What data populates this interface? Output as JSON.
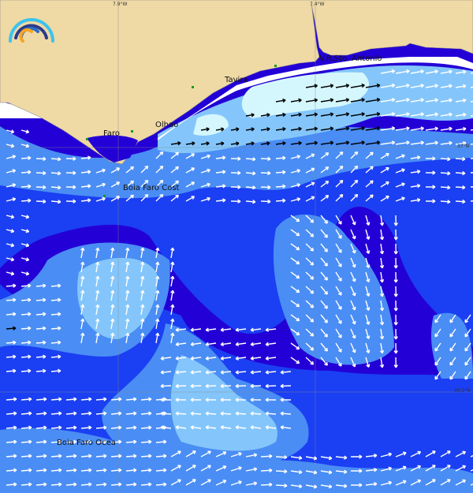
{
  "map": {
    "colors": {
      "land": "#efd9a5",
      "deep": "#2300d6",
      "mid": "#1b3ff2",
      "light": "#4a8df4",
      "lighter": "#84c6fb",
      "pale": "#d4f7fd",
      "nodata": "#ffffff"
    },
    "grid": {
      "lon_labels": [
        "7.9°W",
        "7.4°W"
      ],
      "lat_labels": [
        "37°N",
        "36.5°N"
      ]
    },
    "places": [
      {
        "name": "Faro"
      },
      {
        "name": "Olhao"
      },
      {
        "name": "Tavira"
      },
      {
        "name": "V.R.Sto. Antonio"
      },
      {
        "name": "Boia Faro Cost"
      },
      {
        "name": "Boia Faro Ocea"
      }
    ],
    "logo": "arc-waves-logo"
  }
}
